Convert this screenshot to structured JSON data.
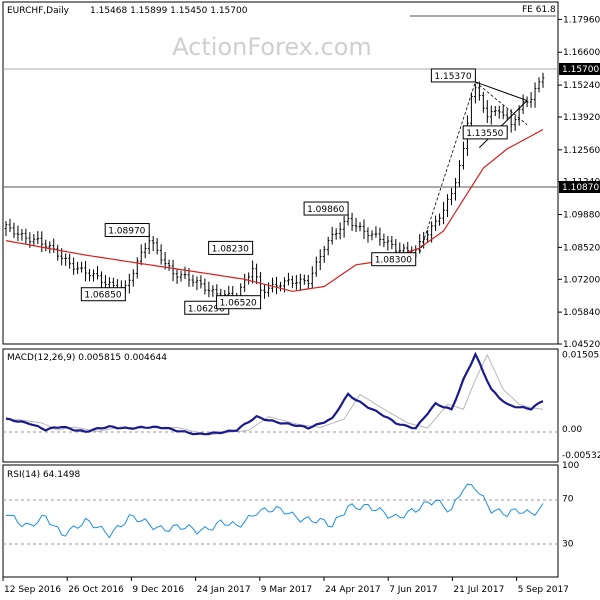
{
  "chart_data": [
    {
      "type": "candlestick",
      "symbol_label": "EURCHF,Daily",
      "ohlc_label": "1.15468 1.15899 1.15450 1.15700",
      "watermark": "ActionForex.com",
      "y_ticks": [
        "1.17960",
        "1.16600",
        "1.15240",
        "1.13920",
        "1.12560",
        "1.11240",
        "1.09880",
        "1.08520",
        "1.07200",
        "1.05840",
        "1.04520"
      ],
      "ylim": [
        1.0452,
        1.1868
      ],
      "last_price": {
        "value": 1.157,
        "label": "1.15700"
      },
      "support_line": {
        "value": 1.1087,
        "label": "1.10870"
      },
      "fib_label": "FE 61.8",
      "fib_value": 1.1835,
      "x_labels": [
        "12 Sep 2016",
        "26 Oct 2016",
        "9 Dec 2016",
        "24 Jan 2017",
        "9 Mar 2017",
        "24 Apr 2017",
        "7 Jun 2017",
        "21 Jul 2017",
        "5 Sep 2017"
      ],
      "annotations": [
        {
          "label": "1.08970",
          "value": 1.0897,
          "t": 36
        },
        {
          "label": "1.06850",
          "value": 1.0685,
          "t": 30
        },
        {
          "label": "1.08230",
          "value": 1.0823,
          "t": 62
        },
        {
          "label": "1.06290",
          "value": 1.0629,
          "t": 56
        },
        {
          "label": "1.06520",
          "value": 1.0652,
          "t": 64
        },
        {
          "label": "1.09860",
          "value": 1.0986,
          "t": 86
        },
        {
          "label": "1.08300",
          "value": 1.083,
          "t": 103
        },
        {
          "label": "1.15370",
          "value": 1.1537,
          "t": 118
        },
        {
          "label": "1.13550",
          "value": 1.1355,
          "t": 126
        }
      ],
      "series": [
        {
          "name": "Moving average",
          "color": "#d62020"
        }
      ]
    },
    {
      "type": "line",
      "label": "MACD(12,26,9) 0.005815 0.004644",
      "y_ticks": [
        "0.015052",
        "0.00",
        "-0.005321"
      ],
      "ylim": [
        -0.0067,
        0.0162
      ],
      "series": [
        {
          "name": "MACD",
          "color": "#1a1a8c"
        },
        {
          "name": "Signal",
          "color": "#b8b8b8"
        }
      ]
    },
    {
      "type": "line",
      "label": "RSI(14) 64.1498",
      "y_ticks": [
        "100",
        "70",
        "30",
        "0"
      ],
      "ylim": [
        0,
        100
      ],
      "series": [
        {
          "name": "RSI",
          "color": "#1e8fe8"
        }
      ]
    }
  ]
}
